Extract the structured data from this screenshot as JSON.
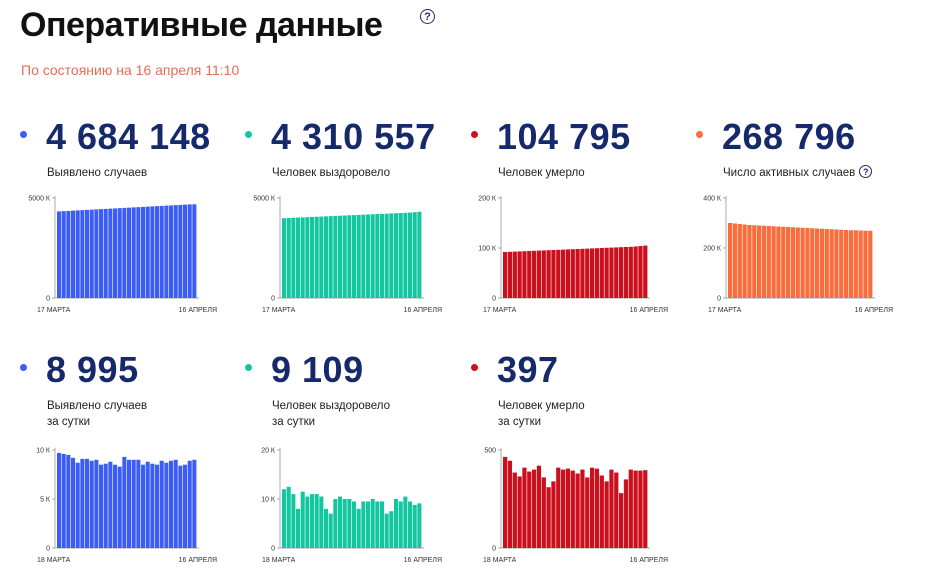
{
  "header": {
    "title": "Оперативные данные",
    "subtitle": "По состоянию на 16 апреля 11:10"
  },
  "colors": {
    "blue": "#3b5cf5",
    "teal": "#12c6a0",
    "red": "#cc0f1d",
    "orange": "#f96d3d",
    "number": "#15296b"
  },
  "cards": [
    {
      "value": "4 684 148",
      "label_lines": [
        "Выявлено случаев"
      ],
      "color": "blue",
      "has_help": false,
      "chart_data": {
        "type": "bar",
        "ylim": [
          0,
          5000
        ],
        "yticks": [
          "5000 К",
          "0"
        ],
        "x_start": "17 МАРТА",
        "x_end": "16 АПРЕЛЯ",
        "values": [
          4330,
          4343,
          4355,
          4368,
          4380,
          4393,
          4405,
          4418,
          4430,
          4443,
          4455,
          4468,
          4480,
          4493,
          4505,
          4518,
          4530,
          4542,
          4555,
          4568,
          4580,
          4592,
          4605,
          4618,
          4630,
          4643,
          4655,
          4668,
          4680,
          4684
        ]
      }
    },
    {
      "value": "4 310 557",
      "label_lines": [
        "Человек выздоровело"
      ],
      "color": "teal",
      "has_help": false,
      "chart_data": {
        "type": "bar",
        "ylim": [
          0,
          5000
        ],
        "yticks": [
          "5000 К",
          "0"
        ],
        "x_start": "17 МАРТА",
        "x_end": "16 АПРЕЛЯ",
        "values": [
          3990,
          4000,
          4010,
          4021,
          4031,
          4041,
          4052,
          4062,
          4073,
          4083,
          4093,
          4104,
          4114,
          4124,
          4135,
          4145,
          4155,
          4166,
          4176,
          4186,
          4197,
          4207,
          4217,
          4228,
          4238,
          4248,
          4259,
          4269,
          4290,
          4310
        ]
      }
    },
    {
      "value": "104 795",
      "label_lines": [
        "Человек умерло"
      ],
      "color": "red",
      "has_help": false,
      "chart_data": {
        "type": "bar",
        "ylim": [
          0,
          200
        ],
        "yticks": [
          "200 К",
          "100 К",
          "0"
        ],
        "x_start": "17 МАРТА",
        "x_end": "16 АПРЕЛЯ",
        "values": [
          92.0,
          92.4,
          92.8,
          93.2,
          93.6,
          94.0,
          94.4,
          94.8,
          95.2,
          95.6,
          96.0,
          96.4,
          96.8,
          97.2,
          97.6,
          98.0,
          98.4,
          98.8,
          99.2,
          99.6,
          100.0,
          100.4,
          100.8,
          101.2,
          101.6,
          102.0,
          102.4,
          103.0,
          103.9,
          104.8
        ]
      }
    },
    {
      "value": "268 796",
      "label_lines": [
        "Число активных случаев"
      ],
      "color": "orange",
      "has_help": true,
      "chart_data": {
        "type": "bar",
        "ylim": [
          0,
          400
        ],
        "yticks": [
          "400 К",
          "200 К",
          "0"
        ],
        "x_start": "17 МАРТА",
        "x_end": "16 АПРЕЛЯ",
        "values": [
          300,
          298,
          296,
          294,
          292,
          291,
          290,
          289,
          288,
          287,
          286,
          285,
          284,
          283,
          282,
          281,
          280,
          279,
          278,
          277,
          276,
          275,
          274,
          273,
          272,
          271,
          271,
          270,
          269,
          269
        ]
      }
    },
    {
      "value": "8 995",
      "label_lines": [
        "Выявлено случаев",
        "за сутки"
      ],
      "color": "blue",
      "has_help": false,
      "chart_data": {
        "type": "bar",
        "ylim": [
          0,
          10000
        ],
        "yticks": [
          "10 К",
          "5 К",
          "0"
        ],
        "x_start": "18 МАРТА",
        "x_end": "16 АПРЕЛЯ",
        "values": [
          9700,
          9600,
          9500,
          9200,
          8700,
          9100,
          9100,
          8900,
          9000,
          8500,
          8600,
          8800,
          8500,
          8300,
          9300,
          9000,
          9000,
          9000,
          8500,
          8800,
          8600,
          8500,
          8900,
          8700,
          8900,
          9000,
          8400,
          8500,
          8900,
          9000
        ]
      }
    },
    {
      "value": "9 109",
      "label_lines": [
        "Человек выздоровело",
        "за сутки"
      ],
      "color": "teal",
      "has_help": false,
      "chart_data": {
        "type": "bar",
        "ylim": [
          0,
          20000
        ],
        "yticks": [
          "20 К",
          "10 К",
          "0"
        ],
        "x_start": "18 МАРТА",
        "x_end": "16 АПРЕЛЯ",
        "values": [
          12000,
          12500,
          11000,
          8000,
          11500,
          10500,
          11000,
          11000,
          10500,
          8000,
          7000,
          10000,
          10500,
          10000,
          10000,
          9500,
          8000,
          9500,
          9500,
          10000,
          9500,
          9500,
          7000,
          7500,
          10000,
          9500,
          10500,
          9500,
          8800,
          9109
        ]
      }
    },
    {
      "value": "397",
      "label_lines": [
        "Человек умерло",
        "за сутки"
      ],
      "color": "red",
      "has_help": false,
      "chart_data": {
        "type": "bar",
        "ylim": [
          0,
          500
        ],
        "yticks": [
          "500",
          "0"
        ],
        "x_start": "18 МАРТА",
        "x_end": "16 АПРЕЛЯ",
        "values": [
          465,
          445,
          385,
          365,
          410,
          390,
          400,
          420,
          360,
          310,
          340,
          410,
          400,
          405,
          395,
          380,
          400,
          360,
          410,
          405,
          370,
          340,
          400,
          385,
          280,
          350,
          400,
          395,
          395,
          397
        ]
      }
    }
  ]
}
